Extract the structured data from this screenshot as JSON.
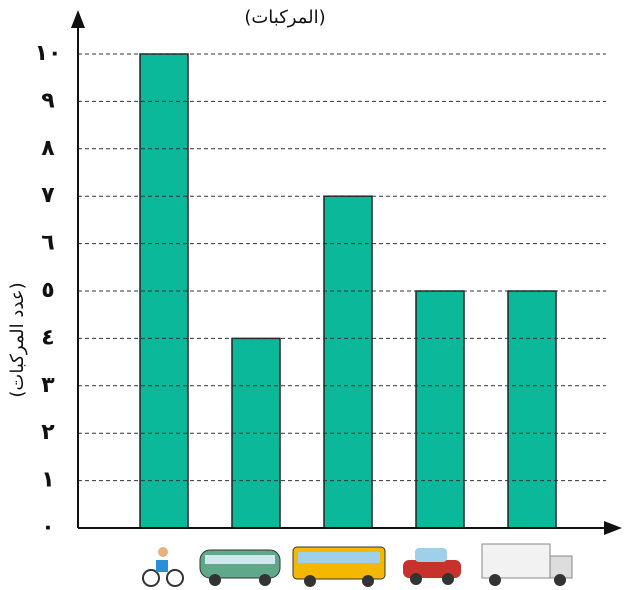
{
  "chart_data": {
    "type": "bar",
    "title": "(المركبات)",
    "y_label": "(عدد المركبات)",
    "categories": [
      null,
      null,
      null,
      null,
      null
    ],
    "values": [
      10,
      4,
      7,
      5,
      5
    ],
    "color": "#0bb99a",
    "ylim": [
      0,
      10
    ],
    "yticks": [
      {
        "value": 0,
        "label": "٠"
      },
      {
        "value": 1,
        "label": "١"
      },
      {
        "value": 2,
        "label": "٢"
      },
      {
        "value": 3,
        "label": "٣"
      },
      {
        "value": 4,
        "label": "٤"
      },
      {
        "value": 5,
        "label": "٥"
      },
      {
        "value": 6,
        "label": "٦"
      },
      {
        "value": 7,
        "label": "٧"
      },
      {
        "value": 8,
        "label": "٨"
      },
      {
        "value": 9,
        "label": "٩"
      },
      {
        "value": 10,
        "label": "١٠"
      }
    ],
    "grid": true
  }
}
